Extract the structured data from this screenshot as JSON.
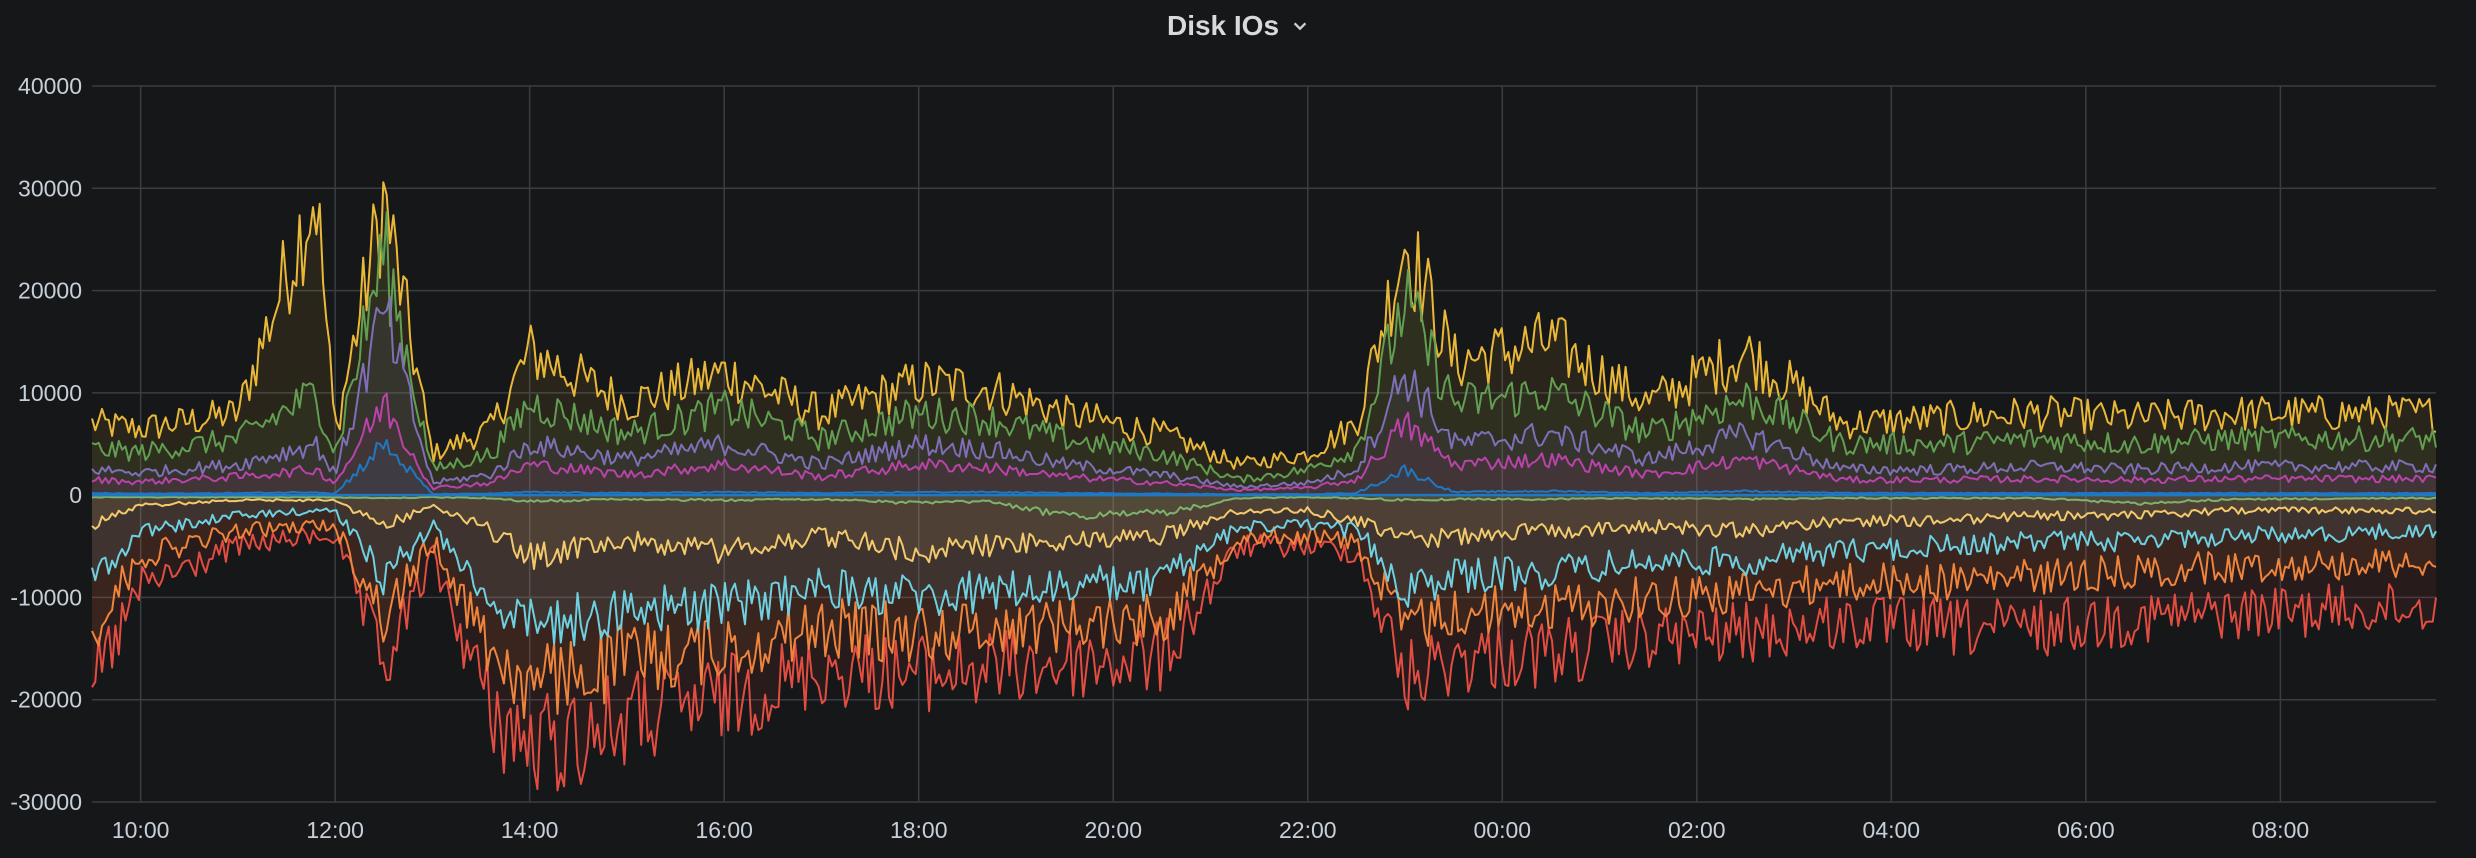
{
  "panel": {
    "title": "Disk IOs",
    "menu_icon": "chevron-down-icon"
  },
  "chart_data": {
    "type": "line",
    "title": "Disk IOs",
    "xlabel": "",
    "ylabel": "",
    "ylim": [
      -30000,
      40000
    ],
    "yticks": [
      40000,
      30000,
      20000,
      10000,
      0,
      -10000,
      -20000,
      -30000
    ],
    "xlim": [
      "09:40",
      "09:40 +1d"
    ],
    "xticks": [
      "10:00",
      "12:00",
      "14:00",
      "16:00",
      "18:00",
      "20:00",
      "22:00",
      "00:00",
      "02:00",
      "04:00",
      "06:00",
      "08:00"
    ],
    "x_hours": [
      9.5,
      10,
      11,
      11.8,
      12,
      12.5,
      13,
      13.6,
      14,
      15,
      16,
      17,
      18,
      18.7,
      19.5,
      20.5,
      21.3,
      22,
      22.5,
      23,
      23.5,
      24.5,
      25.5,
      26.5,
      27.5,
      28.5,
      29.5,
      30.5,
      31.5,
      33.6
    ],
    "grid": true,
    "legend": "none",
    "series": [
      {
        "color": "#eab839",
        "stacked": "positive",
        "values": [
          7000,
          6500,
          8000,
          30000,
          6000,
          29000,
          4000,
          6500,
          14000,
          9000,
          12000,
          8000,
          11000,
          10500,
          8000,
          6000,
          3000,
          4000,
          7000,
          25000,
          13000,
          15000,
          9000,
          14000,
          7000,
          7500,
          8000,
          7500,
          8000,
          8000
        ]
      },
      {
        "color": "#629e51",
        "stacked": "positive",
        "values": [
          4500,
          4200,
          5500,
          10000,
          4000,
          24000,
          2500,
          4000,
          9000,
          6000,
          8500,
          5500,
          8000,
          7500,
          5500,
          4000,
          1500,
          2500,
          4500,
          19000,
          9000,
          10000,
          6000,
          9500,
          5000,
          5000,
          5500,
          5000,
          5500,
          5500
        ]
      },
      {
        "color": "#806eb7",
        "stacked": "positive",
        "values": [
          2500,
          2200,
          3000,
          5000,
          2000,
          18000,
          1200,
          2000,
          5000,
          3500,
          5000,
          3000,
          5000,
          4500,
          3000,
          2000,
          800,
          1200,
          2500,
          12000,
          5000,
          6000,
          3500,
          6000,
          2500,
          2500,
          2800,
          2500,
          2800,
          2800
        ]
      },
      {
        "color": "#ba43a9",
        "stacked": "positive",
        "values": [
          1500,
          1300,
          1800,
          2500,
          1200,
          9000,
          700,
          1200,
          3000,
          2000,
          3000,
          1800,
          3000,
          2700,
          1800,
          1200,
          500,
          700,
          1500,
          7000,
          3000,
          3500,
          2000,
          3500,
          1500,
          1500,
          1600,
          1500,
          1600,
          1600
        ]
      },
      {
        "color": "#1f78c1",
        "stacked": "positive",
        "values": [
          200,
          150,
          200,
          300,
          150,
          5000,
          100,
          150,
          300,
          200,
          300,
          200,
          300,
          300,
          200,
          150,
          80,
          100,
          200,
          2500,
          300,
          400,
          200,
          400,
          200,
          200,
          200,
          200,
          200,
          200
        ]
      },
      {
        "color": "#f2c96d",
        "stacked": "negative",
        "values": [
          -3000,
          -1000,
          -500,
          -500,
          -500,
          -3000,
          -1000,
          -3500,
          -6000,
          -4500,
          -5500,
          -4000,
          -5500,
          -5000,
          -4500,
          -4000,
          -1500,
          -1500,
          -2500,
          -4500,
          -4000,
          -3500,
          -3000,
          -3500,
          -2500,
          -2500,
          -2000,
          -2000,
          -1500,
          -1500
        ]
      },
      {
        "color": "#6ed0e0",
        "stacked": "negative",
        "values": [
          -8000,
          -3500,
          -2000,
          -1500,
          -1500,
          -8000,
          -3000,
          -10000,
          -13000,
          -11000,
          -11000,
          -9000,
          -10000,
          -9500,
          -9000,
          -8500,
          -3000,
          -3000,
          -3500,
          -9000,
          -8000,
          -7500,
          -6500,
          -6500,
          -5500,
          -5000,
          -4500,
          -4500,
          -4000,
          -3500
        ]
      },
      {
        "color": "#ef843c",
        "stacked": "negative",
        "values": [
          -13000,
          -6000,
          -3500,
          -3000,
          -3000,
          -12000,
          -4500,
          -15000,
          -19000,
          -16000,
          -15000,
          -13000,
          -13500,
          -13000,
          -12500,
          -12000,
          -4000,
          -4000,
          -4500,
          -13000,
          -11500,
          -11000,
          -10000,
          -9500,
          -8500,
          -8500,
          -8000,
          -7500,
          -7000,
          -6500
        ]
      },
      {
        "color": "#e24d42",
        "stacked": "negative",
        "values": [
          -19000,
          -9000,
          -5000,
          -4000,
          -4000,
          -17000,
          -6000,
          -21000,
          -25000,
          -22000,
          -20000,
          -17000,
          -17500,
          -17000,
          -16500,
          -16000,
          -5000,
          -5000,
          -5500,
          -18000,
          -16000,
          -15500,
          -14000,
          -13500,
          -12500,
          -13000,
          -13000,
          -12000,
          -11500,
          -11000
        ]
      },
      {
        "color": "#7eb26d",
        "stacked": "negative",
        "values": [
          -200,
          -200,
          -200,
          -200,
          -200,
          -300,
          -200,
          -300,
          -600,
          -400,
          -500,
          -400,
          -800,
          -600,
          -2000,
          -1800,
          -300,
          -200,
          -300,
          -500,
          -400,
          -400,
          -300,
          -400,
          -300,
          -300,
          -300,
          -800,
          -400,
          -300
        ]
      }
    ]
  }
}
